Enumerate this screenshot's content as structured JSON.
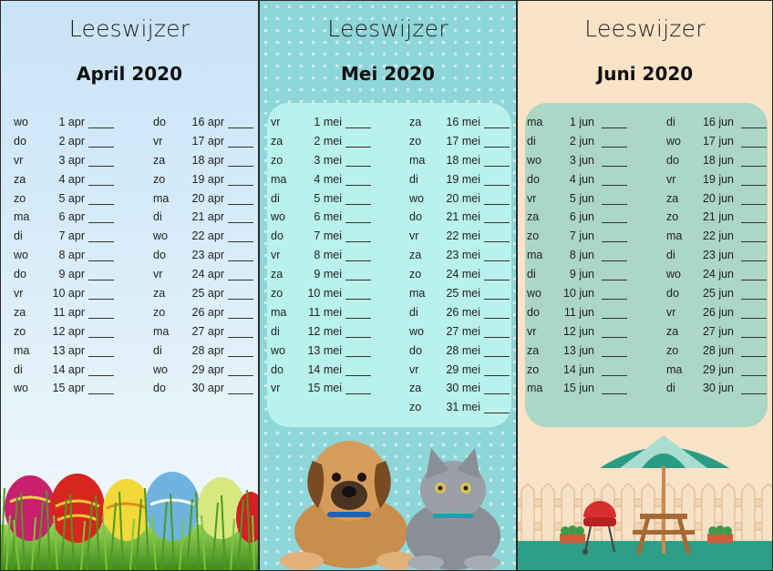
{
  "bookmarks": [
    {
      "title": "Leeswijzer",
      "month": "April 2020",
      "col1": [
        [
          "wo",
          "1 apr"
        ],
        [
          "do",
          "2 apr"
        ],
        [
          "vr",
          "3 apr"
        ],
        [
          "za",
          "4 apr"
        ],
        [
          "zo",
          "5 apr"
        ],
        [
          "ma",
          "6 apr"
        ],
        [
          "di",
          "7 apr"
        ],
        [
          "wo",
          "8 apr"
        ],
        [
          "do",
          "9 apr"
        ],
        [
          "vr",
          "10 apr"
        ],
        [
          "za",
          "11 apr"
        ],
        [
          "zo",
          "12 apr"
        ],
        [
          "ma",
          "13 apr"
        ],
        [
          "di",
          "14 apr"
        ],
        [
          "wo",
          "15 apr"
        ]
      ],
      "col2": [
        [
          "do",
          "16 apr"
        ],
        [
          "vr",
          "17 apr"
        ],
        [
          "za",
          "18 apr"
        ],
        [
          "zo",
          "19 apr"
        ],
        [
          "ma",
          "20 apr"
        ],
        [
          "di",
          "21 apr"
        ],
        [
          "wo",
          "22 apr"
        ],
        [
          "do",
          "23 apr"
        ],
        [
          "vr",
          "24 apr"
        ],
        [
          "za",
          "25 apr"
        ],
        [
          "zo",
          "26 apr"
        ],
        [
          "ma",
          "27 apr"
        ],
        [
          "di",
          "28 apr"
        ],
        [
          "wo",
          "29 apr"
        ],
        [
          "do",
          "30 apr"
        ]
      ],
      "illustration": "easter-eggs-in-grass"
    },
    {
      "title": "Leeswijzer",
      "month": "Mei 2020",
      "col1": [
        [
          "vr",
          "1 mei"
        ],
        [
          "za",
          "2 mei"
        ],
        [
          "zo",
          "3 mei"
        ],
        [
          "ma",
          "4 mei"
        ],
        [
          "di",
          "5 mei"
        ],
        [
          "wo",
          "6 mei"
        ],
        [
          "do",
          "7 mei"
        ],
        [
          "vr",
          "8 mei"
        ],
        [
          "za",
          "9 mei"
        ],
        [
          "zo",
          "10 mei"
        ],
        [
          "ma",
          "11 mei"
        ],
        [
          "di",
          "12 mei"
        ],
        [
          "wo",
          "13 mei"
        ],
        [
          "do",
          "14 mei"
        ],
        [
          "vr",
          "15 mei"
        ]
      ],
      "col2": [
        [
          "za",
          "16 mei"
        ],
        [
          "zo",
          "17 mei"
        ],
        [
          "ma",
          "18 mei"
        ],
        [
          "di",
          "19 mei"
        ],
        [
          "wo",
          "20 mei"
        ],
        [
          "do",
          "21 mei"
        ],
        [
          "vr",
          "22 mei"
        ],
        [
          "za",
          "23 mei"
        ],
        [
          "zo",
          "24 mei"
        ],
        [
          "ma",
          "25 mei"
        ],
        [
          "di",
          "26 mei"
        ],
        [
          "wo",
          "27 mei"
        ],
        [
          "do",
          "28 mei"
        ],
        [
          "vr",
          "29 mei"
        ],
        [
          "za",
          "30 mei"
        ],
        [
          "zo",
          "31 mei"
        ]
      ],
      "illustration": "puppy-and-kitten"
    },
    {
      "title": "Leeswijzer",
      "month": "Juni 2020",
      "col1": [
        [
          "ma",
          "1 jun"
        ],
        [
          "di",
          "2 jun"
        ],
        [
          "wo",
          "3 jun"
        ],
        [
          "do",
          "4 jun"
        ],
        [
          "vr",
          "5 jun"
        ],
        [
          "za",
          "6 jun"
        ],
        [
          "zo",
          "7 jun"
        ],
        [
          "ma",
          "8 jun"
        ],
        [
          "di",
          "9 jun"
        ],
        [
          "wo",
          "10 jun"
        ],
        [
          "do",
          "11 jun"
        ],
        [
          "vr",
          "12 jun"
        ],
        [
          "za",
          "13 jun"
        ],
        [
          "zo",
          "14 jun"
        ],
        [
          "ma",
          "15 jun"
        ]
      ],
      "col2": [
        [
          "di",
          "16 jun"
        ],
        [
          "wo",
          "17 jun"
        ],
        [
          "do",
          "18 jun"
        ],
        [
          "vr",
          "19 jun"
        ],
        [
          "za",
          "20 jun"
        ],
        [
          "zo",
          "21 jun"
        ],
        [
          "ma",
          "22 jun"
        ],
        [
          "di",
          "23 jun"
        ],
        [
          "wo",
          "24 jun"
        ],
        [
          "do",
          "25 jun"
        ],
        [
          "vr",
          "26 jun"
        ],
        [
          "za",
          "27 jun"
        ],
        [
          "zo",
          "28 jun"
        ],
        [
          "ma",
          "29 jun"
        ],
        [
          "di",
          "30 jun"
        ]
      ],
      "illustration": "garden-patio-with-umbrella-and-bbq"
    }
  ]
}
